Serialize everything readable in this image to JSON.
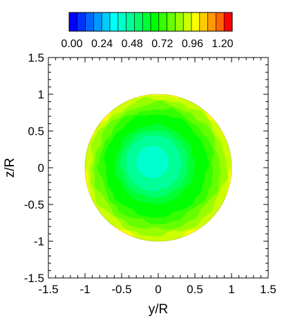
{
  "chart_data": {
    "type": "heatmap",
    "title": "",
    "xlabel": "y/R",
    "ylabel": "z/R",
    "xlim": [
      -1.5,
      1.5
    ],
    "ylim": [
      -1.5,
      1.5
    ],
    "x_ticks": [
      "-1.5",
      "-1",
      "-0.5",
      "0",
      "0.5",
      "1",
      "1.5"
    ],
    "y_ticks": [
      "1.5",
      "1",
      "0.5",
      "0",
      "-0.5",
      "-1",
      "-1.5"
    ],
    "domain_shape": "circle",
    "domain_radius": 1.0,
    "grid": false,
    "legend": "top",
    "colorbar": {
      "range": [
        0.0,
        1.2
      ],
      "levels": 20,
      "tick_labels": [
        "0.00",
        "0.24",
        "0.48",
        "0.72",
        "0.96",
        "1.20"
      ],
      "colors": [
        "#0000ff",
        "#0033ff",
        "#0066ff",
        "#0099ff",
        "#00ccff",
        "#00ffff",
        "#00ffcc",
        "#00ff99",
        "#00ff66",
        "#00ff33",
        "#00ff00",
        "#33ff00",
        "#66ff00",
        "#99ff00",
        "#ccff00",
        "#ffff00",
        "#ffcc00",
        "#ff9900",
        "#ff6600",
        "#ff0000"
      ]
    },
    "field_profile": {
      "r": [
        0.0,
        0.15,
        0.3,
        0.45,
        0.6,
        0.75,
        0.88,
        1.0
      ],
      "value": [
        0.38,
        0.4,
        0.46,
        0.54,
        0.63,
        0.72,
        0.83,
        0.9
      ]
    },
    "center_offset": [
      -0.1,
      0.1
    ]
  }
}
